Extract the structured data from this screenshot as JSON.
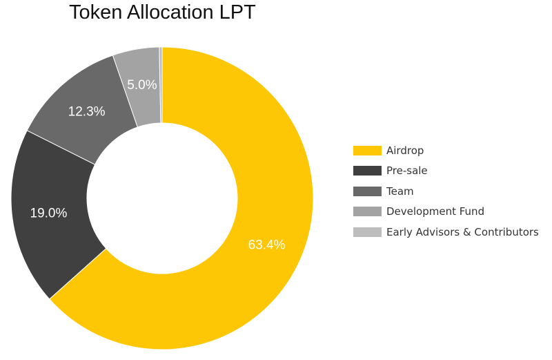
{
  "chart_data": {
    "type": "pie",
    "title": "Token Allocation LPT",
    "donut": true,
    "categories": [
      "Airdrop",
      "Pre-sale",
      "Team",
      "Development Fund",
      "Early Advisors & Contributors"
    ],
    "values": [
      63.4,
      19.0,
      12.3,
      5.0,
      0.3
    ],
    "value_labels": [
      "63.4%",
      "19.0%",
      "12.3%",
      "5.0%",
      ""
    ],
    "colors": [
      "#FDC705",
      "#404040",
      "#696969",
      "#A3A3A3",
      "#BDBDBD"
    ],
    "legend_position": "right"
  }
}
